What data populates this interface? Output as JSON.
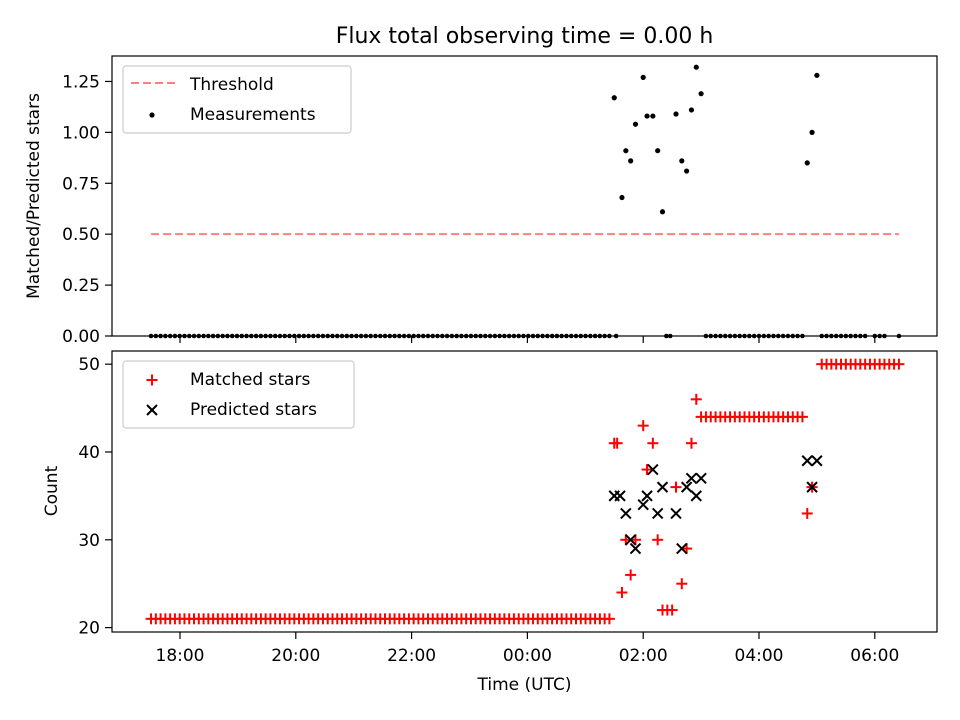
{
  "title": "Flux total observing time = 0.00 h",
  "chart_data": [
    {
      "type": "scatter",
      "ylabel": "Matched/Predicted stars",
      "xlabel": "",
      "ylim": [
        0,
        1.375
      ],
      "yticks": [
        "0.00",
        "0.25",
        "0.50",
        "0.75",
        "1.00",
        "1.25"
      ],
      "ytick_values": [
        0,
        0.25,
        0.5,
        0.75,
        1.0,
        1.25
      ],
      "legend_position": "top-left",
      "grid": false,
      "threshold": {
        "name": "Threshold",
        "value": 0.5,
        "x_start": "17:30",
        "x_end": "06:25",
        "color": "#ff7f7f",
        "style": "dashed"
      },
      "measurements": {
        "name": "Measurements",
        "color": "#000000",
        "zero_runs": [
          {
            "start": "17:30",
            "end": "01:25",
            "count": 97
          },
          {
            "start": "01:32",
            "end": "01:32",
            "count": 1
          },
          {
            "start": "02:24",
            "end": "02:28",
            "count": 2
          },
          {
            "start": "03:05",
            "end": "04:45",
            "count": 21
          },
          {
            "start": "05:05",
            "end": "05:50",
            "count": 10
          },
          {
            "start": "06:00",
            "end": "06:10",
            "count": 3
          },
          {
            "start": "06:25",
            "end": "06:25",
            "count": 1
          }
        ],
        "points": [
          {
            "x": "01:30",
            "y": 1.17
          },
          {
            "x": "01:38",
            "y": 0.68
          },
          {
            "x": "01:42",
            "y": 0.91
          },
          {
            "x": "01:47",
            "y": 0.86
          },
          {
            "x": "01:52",
            "y": 1.04
          },
          {
            "x": "02:00",
            "y": 1.27
          },
          {
            "x": "02:04",
            "y": 1.08
          },
          {
            "x": "02:10",
            "y": 1.08
          },
          {
            "x": "02:15",
            "y": 0.91
          },
          {
            "x": "02:20",
            "y": 0.61
          },
          {
            "x": "02:34",
            "y": 1.09
          },
          {
            "x": "02:40",
            "y": 0.86
          },
          {
            "x": "02:45",
            "y": 0.81
          },
          {
            "x": "02:50",
            "y": 1.11
          },
          {
            "x": "02:55",
            "y": 1.32
          },
          {
            "x": "03:00",
            "y": 1.19
          },
          {
            "x": "04:50",
            "y": 0.85
          },
          {
            "x": "04:55",
            "y": 1.0
          },
          {
            "x": "05:00",
            "y": 1.28
          }
        ]
      },
      "legend": [
        "Threshold",
        "Measurements"
      ]
    },
    {
      "type": "scatter",
      "ylabel": "Count",
      "xlabel": "Time (UTC)",
      "ylim": [
        19.5,
        51.5
      ],
      "yticks": [
        "20",
        "30",
        "40",
        "50"
      ],
      "ytick_values": [
        20,
        30,
        40,
        50
      ],
      "xticks": [
        "18:00",
        "20:00",
        "22:00",
        "00:00",
        "02:00",
        "04:00",
        "06:00"
      ],
      "legend_position": "top-left",
      "grid": false,
      "series": [
        {
          "name": "Matched stars",
          "marker": "+",
          "color": "#ff0000",
          "runs": [
            {
              "start": "17:30",
              "end": "01:25",
              "count": 97,
              "y": 21
            },
            {
              "start": "03:00",
              "end": "04:45",
              "count": 22,
              "y": 44
            },
            {
              "start": "05:05",
              "end": "06:25",
              "count": 17,
              "y": 50
            }
          ],
          "points": [
            {
              "x": "01:30",
              "y": 41
            },
            {
              "x": "01:33",
              "y": 41
            },
            {
              "x": "01:38",
              "y": 24
            },
            {
              "x": "01:42",
              "y": 30
            },
            {
              "x": "01:47",
              "y": 26
            },
            {
              "x": "01:52",
              "y": 30
            },
            {
              "x": "02:00",
              "y": 43
            },
            {
              "x": "02:04",
              "y": 38
            },
            {
              "x": "02:10",
              "y": 41
            },
            {
              "x": "02:15",
              "y": 30
            },
            {
              "x": "02:20",
              "y": 22
            },
            {
              "x": "02:25",
              "y": 22
            },
            {
              "x": "02:30",
              "y": 22
            },
            {
              "x": "02:34",
              "y": 36
            },
            {
              "x": "02:40",
              "y": 25
            },
            {
              "x": "02:45",
              "y": 29
            },
            {
              "x": "02:50",
              "y": 41
            },
            {
              "x": "02:55",
              "y": 46
            },
            {
              "x": "04:50",
              "y": 33
            },
            {
              "x": "04:55",
              "y": 36
            }
          ]
        },
        {
          "name": "Predicted stars",
          "marker": "x",
          "color": "#000000",
          "points": [
            {
              "x": "01:30",
              "y": 35
            },
            {
              "x": "01:36",
              "y": 35
            },
            {
              "x": "01:42",
              "y": 33
            },
            {
              "x": "01:47",
              "y": 30
            },
            {
              "x": "01:52",
              "y": 29
            },
            {
              "x": "02:00",
              "y": 34
            },
            {
              "x": "02:04",
              "y": 35
            },
            {
              "x": "02:10",
              "y": 38
            },
            {
              "x": "02:15",
              "y": 33
            },
            {
              "x": "02:20",
              "y": 36
            },
            {
              "x": "02:34",
              "y": 33
            },
            {
              "x": "02:40",
              "y": 29
            },
            {
              "x": "02:45",
              "y": 36
            },
            {
              "x": "02:50",
              "y": 37
            },
            {
              "x": "02:55",
              "y": 35
            },
            {
              "x": "03:00",
              "y": 37
            },
            {
              "x": "04:50",
              "y": 39
            },
            {
              "x": "04:55",
              "y": 36
            },
            {
              "x": "05:00",
              "y": 39
            }
          ]
        }
      ],
      "legend": [
        "Matched stars",
        "Predicted stars"
      ]
    }
  ]
}
